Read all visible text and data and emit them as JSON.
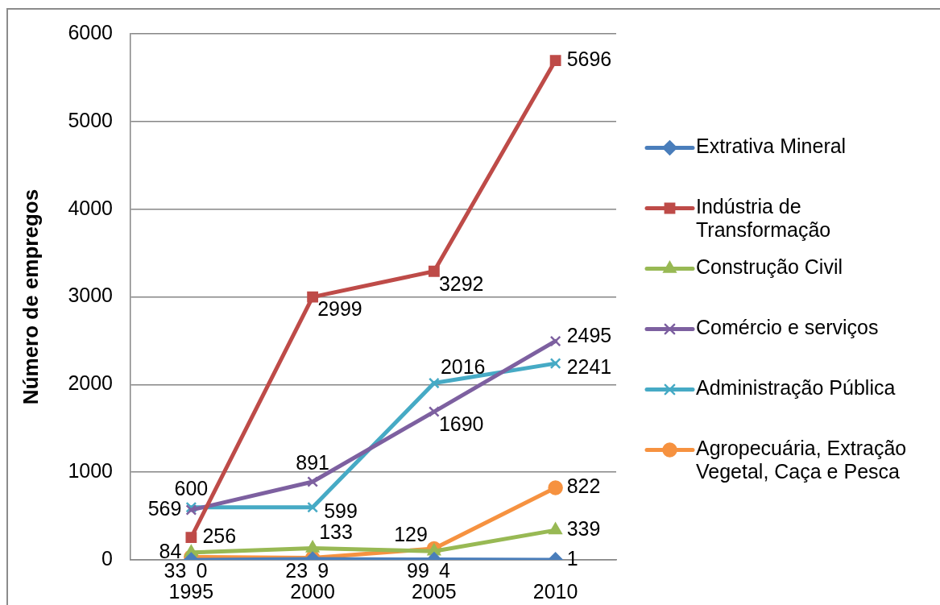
{
  "chart_data": {
    "type": "line",
    "ylabel": "Número de empregos",
    "categories": [
      "1995",
      "2000",
      "2005",
      "2010"
    ],
    "series": [
      {
        "name": "Extrativa Mineral",
        "color": "#4a7ebb",
        "marker": "diamond",
        "values": [
          0,
          9,
          4,
          1
        ]
      },
      {
        "name": "Indústria de Transformação",
        "color": "#be4b48",
        "marker": "square",
        "values": [
          256,
          2999,
          3292,
          5696
        ]
      },
      {
        "name": "Construção Civil",
        "color": "#98b954",
        "marker": "triangle",
        "values": [
          84,
          133,
          99,
          339
        ]
      },
      {
        "name": "Comércio e serviços",
        "color": "#7d60a0",
        "marker": "cross",
        "values": [
          569,
          891,
          1690,
          2495
        ]
      },
      {
        "name": "Administração Pública",
        "color": "#46aac5",
        "marker": "cross",
        "values": [
          600,
          599,
          2016,
          2241
        ]
      },
      {
        "name": "Agropecuária, Extração Vegetal, Caça e Pesca",
        "color": "#f69240",
        "marker": "circle",
        "values": [
          33,
          23,
          129,
          822
        ]
      }
    ],
    "ylim": [
      0,
      6000
    ],
    "yticks": [
      0,
      1000,
      2000,
      3000,
      4000,
      5000,
      6000
    ],
    "grid": "y",
    "legend": "right",
    "data_labels": true,
    "line_style": "solid"
  }
}
